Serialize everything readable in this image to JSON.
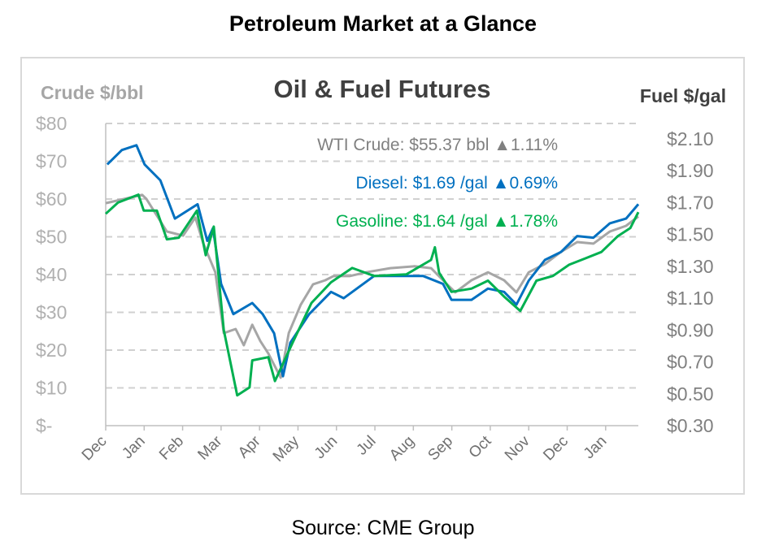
{
  "page_title": "Petroleum Market at a Glance",
  "source": "Source: CME Group",
  "chart_data": {
    "type": "line",
    "title": "Oil & Fuel Futures",
    "ylabel": "Crude $/bbl",
    "y2label": "Fuel $/gal",
    "xlabel": "",
    "x_unit": "months since start of December",
    "xlim": [
      0,
      13.85
    ],
    "ylim": [
      0,
      80
    ],
    "y2lim": [
      0.3,
      2.1
    ],
    "grid": true,
    "legend_placement": "top-right",
    "x_tick_labels": [
      "Dec",
      "Jan",
      "Feb",
      "Mar",
      "Apr",
      "May",
      "Jun",
      "Jul",
      "Aug",
      "Sep",
      "Oct",
      "Nov",
      "Dec",
      "Jan"
    ],
    "y_tick_labels": [
      "$-",
      "$10",
      "$20",
      "$30",
      "$40",
      "$50",
      "$60",
      "$70",
      "$80"
    ],
    "y2_tick_labels": [
      "$0.30",
      "$0.50",
      "$0.70",
      "$0.90",
      "$1.10",
      "$1.30",
      "$1.50",
      "$1.70",
      "$1.90",
      "$2.10"
    ],
    "legend": [
      {
        "label": "WTI Crude:",
        "price": "$55.37 bbl",
        "change": "▲1.11%",
        "color": "#808080"
      },
      {
        "label": "Diesel:",
        "price": "$1.69 /gal",
        "change": "▲0.69%",
        "color": "#0070c0"
      },
      {
        "label": "Gasoline:",
        "price": "$1.64 /gal",
        "change": "▲1.78%",
        "color": "#00b050"
      }
    ],
    "series": [
      {
        "name": "WTI Crude",
        "axis": "left",
        "color": "#a6a6a6",
        "x": [
          0,
          0.95,
          1.06,
          1.59,
          2.01,
          2.33,
          2.54,
          2.85,
          3.07,
          3.38,
          3.59,
          3.81,
          4.02,
          4.23,
          4.55,
          4.76,
          5.07,
          5.39,
          5.71,
          5.92,
          6.34,
          6.77,
          7.4,
          8.03,
          8.46,
          8.77,
          9.09,
          9.51,
          9.94,
          10.36,
          10.68,
          11,
          11.42,
          11.84,
          12.26,
          12.68,
          13.11,
          13.53,
          13.85
        ],
        "y": [
          58.9,
          61.1,
          60,
          51.4,
          50.3,
          55.1,
          48.2,
          40.6,
          24.5,
          25.6,
          21.3,
          26.7,
          22.4,
          19.1,
          12.7,
          24.5,
          32,
          37.4,
          38.5,
          39.6,
          39.6,
          40.6,
          41.7,
          42.2,
          41.7,
          38.5,
          35.3,
          38.5,
          40.6,
          38.5,
          35.3,
          40.6,
          42.8,
          46,
          48.6,
          48.2,
          51.4,
          52.9,
          55.37
        ]
      },
      {
        "name": "Diesel",
        "axis": "right",
        "color": "#0070c0",
        "x": [
          0.04,
          0.42,
          0.8,
          1.01,
          1.42,
          1.8,
          2.39,
          2.64,
          2.79,
          3,
          3.32,
          3.81,
          4.08,
          4.38,
          4.61,
          4.8,
          5.29,
          5.86,
          6.19,
          6.98,
          7.4,
          8.25,
          8.77,
          8.99,
          9.51,
          9.94,
          10.36,
          10.68,
          11,
          11.42,
          11.84,
          12.26,
          12.68,
          13.11,
          13.53,
          13.85
        ],
        "y": [
          1.94,
          2.03,
          2.06,
          1.94,
          1.84,
          1.6,
          1.69,
          1.46,
          1.54,
          1.19,
          1.0,
          1.07,
          1.0,
          0.88,
          0.61,
          0.82,
          1.0,
          1.14,
          1.1,
          1.24,
          1.24,
          1.24,
          1.19,
          1.09,
          1.09,
          1.16,
          1.14,
          1.06,
          1.21,
          1.34,
          1.39,
          1.49,
          1.48,
          1.57,
          1.6,
          1.69
        ]
      },
      {
        "name": "Gasoline",
        "axis": "right",
        "color": "#00b050",
        "x": [
          0,
          0.32,
          0.85,
          0.99,
          1.33,
          1.59,
          1.9,
          2.37,
          2.6,
          2.81,
          3.07,
          3.42,
          3.74,
          3.81,
          4.23,
          4.4,
          4.86,
          5.35,
          5.86,
          6.41,
          6.98,
          7.82,
          8.46,
          8.56,
          8.67,
          8.99,
          9.51,
          9.94,
          10.36,
          10.78,
          11.2,
          11.63,
          12.05,
          12.47,
          12.89,
          13.32,
          13.64,
          13.85
        ],
        "y": [
          1.63,
          1.7,
          1.75,
          1.65,
          1.65,
          1.47,
          1.48,
          1.65,
          1.37,
          1.55,
          0.9,
          0.49,
          0.54,
          0.71,
          0.73,
          0.58,
          0.82,
          1.07,
          1.2,
          1.29,
          1.24,
          1.25,
          1.34,
          1.42,
          1.26,
          1.14,
          1.16,
          1.21,
          1.11,
          1.02,
          1.21,
          1.24,
          1.31,
          1.35,
          1.39,
          1.49,
          1.54,
          1.64
        ]
      }
    ]
  }
}
